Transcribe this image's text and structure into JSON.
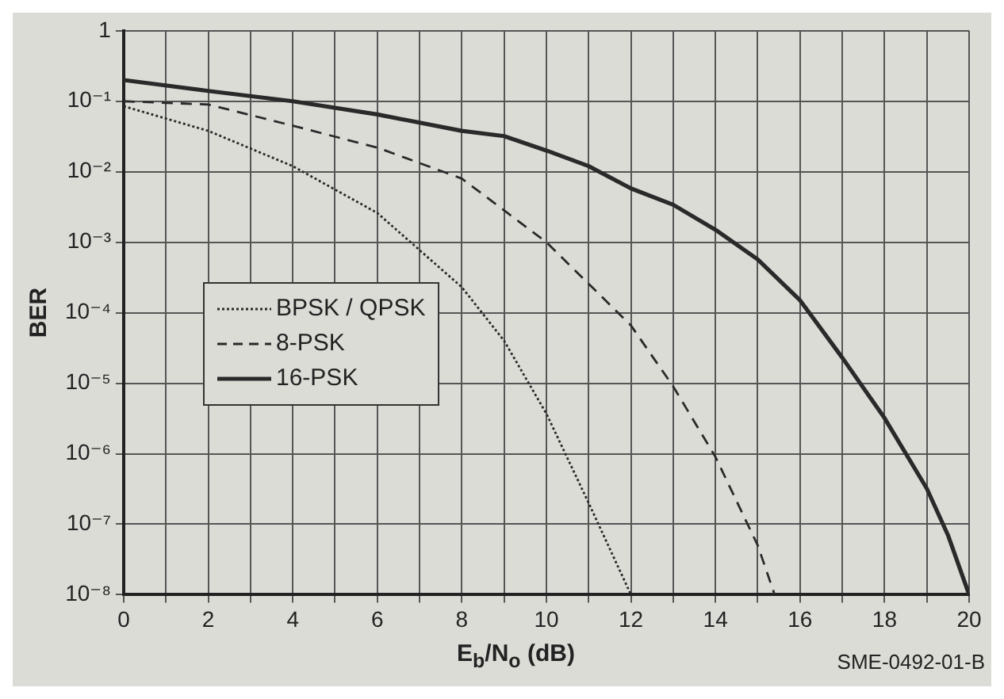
{
  "chart_data": {
    "type": "line",
    "ylabel": "BER",
    "xlabel": "E$_{b}$/N$_{o}$ (dB)",
    "annotations": [
      "SME-0492-01-B"
    ],
    "xlim": [
      0,
      20
    ],
    "xticks": [
      0,
      {
        "value": 1,
        "label": null
      },
      2,
      {
        "value": 3,
        "label": null
      },
      4,
      {
        "value": 5,
        "label": null
      },
      6,
      {
        "value": 7,
        "label": null
      },
      8,
      {
        "value": 9,
        "label": null
      },
      10,
      {
        "value": 11,
        "label": null
      },
      12,
      {
        "value": 13,
        "label": null
      },
      14,
      {
        "value": 15,
        "label": null
      },
      16,
      {
        "value": 17,
        "label": null
      },
      18,
      {
        "value": 19,
        "label": null
      },
      20
    ],
    "ylim": [
      1e-08,
      1
    ],
    "yticks": [
      {
        "value": 1e-08,
        "label": "10⁻⁸"
      },
      {
        "value": 1e-07,
        "label": "10⁻⁷"
      },
      {
        "value": 1e-06,
        "label": "10⁻⁶"
      },
      {
        "value": 1e-05,
        "label": "10⁻⁵"
      },
      {
        "value": 0.0001,
        "label": "10⁻⁴"
      },
      {
        "value": 0.001,
        "label": "10⁻³"
      },
      {
        "value": 0.01,
        "label": "10⁻²"
      },
      {
        "value": 0.1,
        "label": "10⁻¹"
      },
      1
    ],
    "log": "y",
    "grid": true,
    "legend": "left",
    "marker": "none",
    "series": [
      {
        "name": "BPSK / QPSK",
        "color": "#2a2a2a",
        "line_style": "dotted",
        "x": [
          0,
          2,
          4,
          6,
          8,
          9,
          10,
          11,
          12
        ],
        "values": [
          0.085,
          0.038,
          0.012,
          0.0026,
          0.00023,
          4e-05,
          3.7e-06,
          2e-07,
          1e-08
        ]
      },
      {
        "name": "8-PSK",
        "color": "#2a2a2a",
        "line_style": "dashed",
        "x": [
          0,
          2,
          4,
          6,
          8,
          10,
          12,
          13,
          14,
          15,
          15.4
        ],
        "values": [
          0.1,
          0.09,
          0.045,
          0.022,
          0.008,
          0.001,
          6.6e-05,
          9e-06,
          9e-07,
          5e-08,
          1e-08
        ]
      },
      {
        "name": "16-PSK",
        "color": "#2a2a2a",
        "line_style": "solid",
        "x": [
          0,
          2,
          4,
          6,
          8,
          9,
          10,
          11,
          12,
          13,
          14,
          15,
          16,
          17,
          18,
          19,
          19.5,
          20
        ],
        "values": [
          0.2,
          0.14,
          0.1,
          0.065,
          0.038,
          0.032,
          0.02,
          0.012,
          0.0058,
          0.0034,
          0.0015,
          0.00057,
          0.00015,
          2.3e-05,
          3.2e-06,
          3.2e-07,
          7e-08,
          1e-08
        ]
      }
    ]
  }
}
